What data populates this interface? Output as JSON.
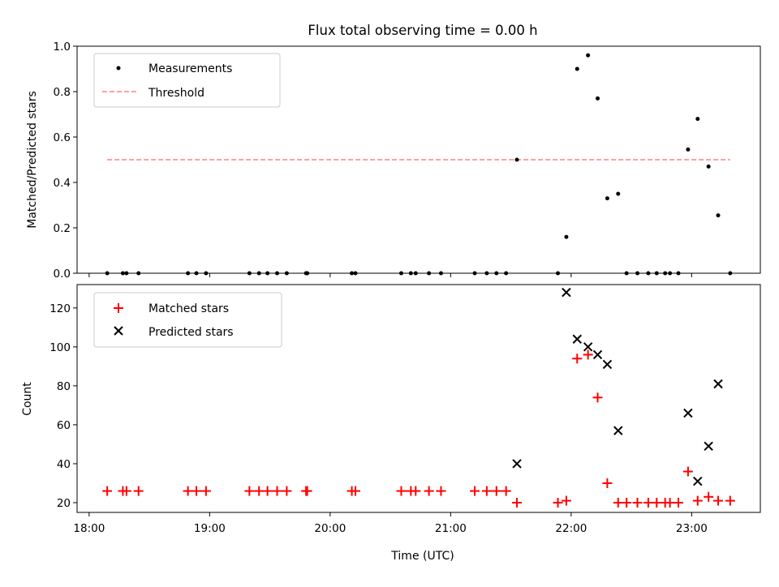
{
  "chart_data": [
    {
      "type": "scatter",
      "title": "Flux total observing time = 0.00 h",
      "xlabel": "",
      "ylabel": "Matched/Predicted stars",
      "xlim_hours": [
        17.9,
        23.57
      ],
      "ylim": [
        0,
        1.0
      ],
      "yticks": [
        0.0,
        0.2,
        0.4,
        0.6,
        0.8,
        1.0
      ],
      "ytick_labels": [
        "0.0",
        "0.2",
        "0.4",
        "0.6",
        "0.8",
        "1.0"
      ],
      "legend_placement": "upper-left",
      "threshold": {
        "name": "Threshold",
        "value": 0.5,
        "x_start": 18.15,
        "x_end": 23.32,
        "color": "#ff8080"
      },
      "series": [
        {
          "name": "Measurements",
          "marker": "dot",
          "color": "#000000",
          "x": [
            18.15,
            18.28,
            18.31,
            18.41,
            18.82,
            18.89,
            18.97,
            19.33,
            19.41,
            19.48,
            19.56,
            19.64,
            19.8,
            19.81,
            20.18,
            20.21,
            20.59,
            20.67,
            20.71,
            20.82,
            20.92,
            21.2,
            21.3,
            21.38,
            21.46,
            21.55,
            21.89,
            21.96,
            22.05,
            22.14,
            22.22,
            22.3,
            22.39,
            22.46,
            22.55,
            22.64,
            22.71,
            22.78,
            22.82,
            22.89,
            22.97,
            23.05,
            23.14,
            23.22,
            23.32
          ],
          "y": [
            0,
            0,
            0,
            0,
            0,
            0,
            0,
            0,
            0,
            0,
            0,
            0,
            0,
            0,
            0,
            0,
            0,
            0,
            0,
            0,
            0,
            0,
            0,
            0,
            0,
            0.5,
            0,
            0.16,
            0.9,
            0.96,
            0.77,
            0.33,
            0.35,
            0,
            0,
            0,
            0,
            0,
            0,
            0,
            0.545,
            0.68,
            0.47,
            0.255,
            0
          ]
        }
      ]
    },
    {
      "type": "scatter",
      "title": "",
      "xlabel": "Time (UTC)",
      "ylabel": "Count",
      "xlim_hours": [
        17.9,
        23.57
      ],
      "ylim": [
        15,
        132
      ],
      "yticks": [
        20,
        40,
        60,
        80,
        100,
        120
      ],
      "ytick_labels": [
        "20",
        "40",
        "60",
        "80",
        "100",
        "120"
      ],
      "xticks_hours": [
        18,
        19,
        20,
        21,
        22,
        23
      ],
      "xtick_labels": [
        "18:00",
        "19:00",
        "20:00",
        "21:00",
        "22:00",
        "23:00"
      ],
      "legend_placement": "upper-left",
      "series": [
        {
          "name": "Matched stars",
          "marker": "plus",
          "color": "#ff0000",
          "x": [
            18.15,
            18.28,
            18.31,
            18.41,
            18.82,
            18.89,
            18.97,
            19.33,
            19.41,
            19.48,
            19.56,
            19.64,
            19.8,
            19.81,
            20.18,
            20.21,
            20.59,
            20.67,
            20.71,
            20.82,
            20.92,
            21.2,
            21.3,
            21.38,
            21.46,
            21.55,
            21.89,
            21.96,
            22.05,
            22.14,
            22.22,
            22.3,
            22.39,
            22.46,
            22.55,
            22.64,
            22.71,
            22.78,
            22.82,
            22.89,
            22.97,
            23.05,
            23.14,
            23.22,
            23.32
          ],
          "y": [
            26,
            26,
            26,
            26,
            26,
            26,
            26,
            26,
            26,
            26,
            26,
            26,
            26,
            26,
            26,
            26,
            26,
            26,
            26,
            26,
            26,
            26,
            26,
            26,
            26,
            20,
            20,
            21,
            94,
            96,
            74,
            30,
            20,
            20,
            20,
            20,
            20,
            20,
            20,
            20,
            36,
            21,
            23,
            21,
            21
          ]
        },
        {
          "name": "Predicted stars",
          "marker": "x",
          "color": "#000000",
          "x": [
            21.55,
            21.96,
            22.05,
            22.14,
            22.22,
            22.3,
            22.39,
            22.97,
            23.05,
            23.14,
            23.22
          ],
          "y": [
            40,
            128,
            104,
            100,
            96,
            91,
            57,
            66,
            31,
            49,
            81
          ]
        }
      ]
    }
  ]
}
